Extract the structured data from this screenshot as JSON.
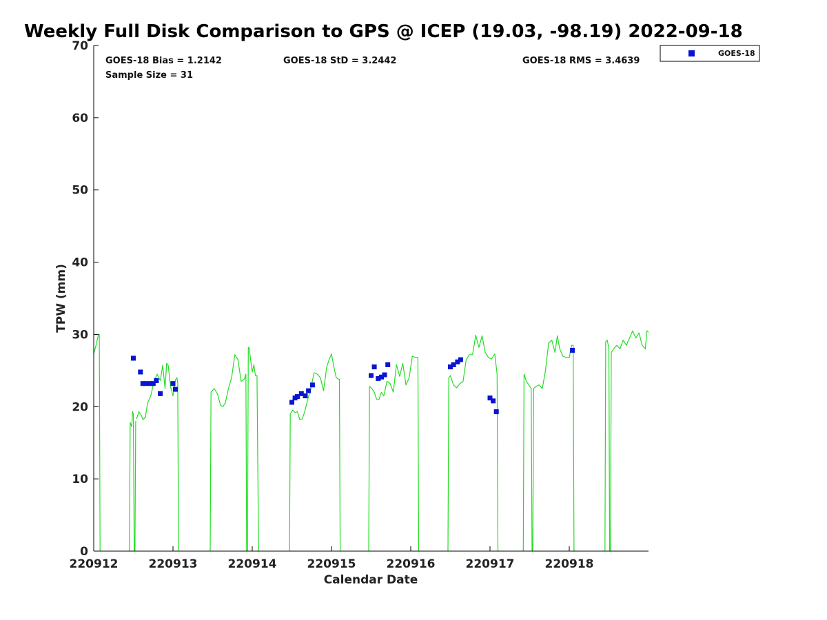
{
  "chart_data": {
    "type": "scatter",
    "title": "Weekly Full Disk Comparison to GPS @ ICEP (19.03, -98.19) 2022-09-18",
    "xlabel": "Calendar Date",
    "ylabel": "TPW (mm)",
    "xlim": [
      0,
      7
    ],
    "ylim": [
      0,
      70
    ],
    "x_ticks": [
      {
        "value": 0,
        "label": "220912"
      },
      {
        "value": 1,
        "label": "220913"
      },
      {
        "value": 2,
        "label": "220914"
      },
      {
        "value": 3,
        "label": "220915"
      },
      {
        "value": 4,
        "label": "220916"
      },
      {
        "value": 5,
        "label": "220917"
      },
      {
        "value": 6,
        "label": "220918"
      }
    ],
    "y_ticks": [
      0,
      10,
      20,
      30,
      40,
      50,
      60,
      70
    ],
    "y_tick_labels": [
      "0",
      "10",
      "20",
      "30",
      "40",
      "50",
      "60",
      "70"
    ],
    "stats": {
      "bias": "GOES-18 Bias = 1.2142",
      "std": "GOES-18 StD = 3.2442",
      "rms": "GOES-18 RMS = 3.4639",
      "sample_size": "Sample Size = 31"
    },
    "legend": {
      "label": "GOES-18",
      "position": "top-right outside"
    },
    "colors": {
      "goes": "#0a14d2",
      "gps": "#22dd22"
    },
    "series": [
      {
        "name": "GOES-18",
        "marker": "square",
        "x": [
          0.5,
          0.59,
          0.62,
          0.66,
          0.71,
          0.75,
          0.79,
          0.84,
          1.0,
          1.03,
          2.5,
          2.54,
          2.57,
          2.62,
          2.67,
          2.71,
          2.76,
          3.5,
          3.54,
          3.59,
          3.63,
          3.67,
          3.71,
          4.5,
          4.54,
          4.59,
          4.63,
          5.0,
          5.04,
          5.08,
          6.04
        ],
        "y": [
          26.7,
          24.8,
          23.2,
          23.2,
          23.2,
          23.2,
          23.6,
          21.8,
          23.2,
          22.4,
          20.6,
          21.2,
          21.4,
          21.8,
          21.5,
          22.2,
          23.0,
          24.3,
          25.5,
          23.9,
          24.1,
          24.4,
          25.8,
          25.5,
          25.8,
          26.2,
          26.5,
          21.2,
          20.8,
          19.3,
          27.8
        ]
      },
      {
        "name": "GPS",
        "marker": "line",
        "segments": [
          {
            "x": [
              0.0,
              0.03,
              0.06,
              0.07,
              0.08
            ],
            "y": [
              27.3,
              28.5,
              30.0,
              30.0,
              0
            ]
          },
          {
            "x": [
              0.45,
              0.46,
              0.48,
              0.49,
              0.5,
              0.51,
              0.52,
              0.53
            ],
            "y": [
              0,
              17.8,
              17.2,
              19.3,
              19.0,
              0,
              0,
              18.0
            ]
          },
          {
            "x": [
              0.54,
              0.57,
              0.6,
              0.62,
              0.65,
              0.68,
              0.72,
              0.76,
              0.8,
              0.84,
              0.87,
              0.9,
              0.92,
              0.94,
              0.97,
              1.0,
              1.03,
              1.05,
              1.06,
              1.07
            ],
            "y": [
              18.3,
              19.3,
              18.8,
              18.2,
              18.5,
              20.5,
              21.5,
              23.5,
              24.5,
              23.6,
              25.7,
              22.5,
              26.0,
              25.7,
              22.7,
              21.5,
              23.7,
              24.0,
              23.2,
              0
            ]
          },
          {
            "x": [
              1.47,
              1.48,
              1.52,
              1.56,
              1.6,
              1.63,
              1.66,
              1.7,
              1.74,
              1.78,
              1.82,
              1.86,
              1.9,
              1.92,
              1.93,
              1.94,
              1.95,
              1.96,
              1.98,
              2.0,
              2.02,
              2.04,
              2.06,
              2.08,
              2.09
            ],
            "y": [
              0,
              22.0,
              22.5,
              21.8,
              20.2,
              20.0,
              20.5,
              22.5,
              24.0,
              27.2,
              26.5,
              23.5,
              23.8,
              24.5,
              0,
              0,
              28.2,
              28.2,
              26.5,
              24.8,
              25.8,
              24.3,
              24.3,
              0,
              0
            ]
          },
          {
            "x": [
              2.47,
              2.48,
              2.51,
              2.54,
              2.57,
              2.6,
              2.63,
              2.66,
              2.7,
              2.74,
              2.78,
              2.82,
              2.86,
              2.9,
              2.94,
              2.97,
              3.0,
              3.03,
              3.06,
              3.09,
              3.1,
              3.11
            ],
            "y": [
              0,
              19.0,
              19.5,
              19.2,
              19.3,
              18.2,
              18.3,
              19.2,
              21.0,
              22.5,
              24.7,
              24.5,
              24.0,
              22.2,
              25.5,
              26.5,
              27.3,
              25.5,
              24.0,
              23.8,
              23.8,
              0
            ]
          },
          {
            "x": [
              3.47,
              3.48,
              3.51,
              3.54,
              3.57,
              3.6,
              3.63,
              3.66,
              3.7,
              3.74,
              3.78,
              3.82,
              3.86,
              3.9,
              3.94,
              3.98,
              4.02,
              4.06,
              4.09,
              4.1,
              4.11
            ],
            "y": [
              0,
              22.8,
              22.5,
              22.0,
              21.0,
              21.0,
              22.0,
              21.5,
              23.5,
              23.2,
              22.0,
              25.8,
              24.2,
              26.0,
              23.0,
              24.0,
              27.0,
              26.8,
              26.8,
              0,
              0
            ]
          },
          {
            "x": [
              4.47,
              4.48,
              4.5,
              4.54,
              4.58,
              4.62,
              4.66,
              4.7,
              4.74,
              4.78,
              4.82,
              4.86,
              4.9,
              4.94,
              4.98,
              5.02,
              5.06,
              5.09,
              5.1,
              5.11
            ],
            "y": [
              0,
              24.0,
              24.3,
              23.0,
              22.6,
              23.2,
              23.5,
              26.5,
              27.2,
              27.2,
              29.9,
              28.2,
              29.8,
              27.5,
              26.8,
              26.6,
              27.3,
              24.5,
              0,
              0
            ]
          },
          {
            "x": [
              5.42,
              5.43,
              5.46,
              5.49,
              5.52,
              5.53,
              5.54,
              5.55,
              5.58,
              5.62,
              5.66,
              5.7,
              5.74,
              5.78,
              5.82,
              5.85,
              5.88,
              5.92,
              5.96,
              6.0,
              6.03,
              6.05,
              6.06,
              6.07
            ],
            "y": [
              0,
              24.5,
              23.5,
              23.0,
              22.5,
              0,
              0,
              22.5,
              22.8,
              23.0,
              22.5,
              25.0,
              28.8,
              29.2,
              27.5,
              29.8,
              28.0,
              27.0,
              26.8,
              26.8,
              28.5,
              28.5,
              0,
              0
            ]
          },
          {
            "x": [
              6.45,
              6.46,
              6.48,
              6.5,
              6.51,
              6.52,
              6.53,
              6.56,
              6.6,
              6.64,
              6.68,
              6.72,
              6.76,
              6.8,
              6.84,
              6.88,
              6.92,
              6.96,
              6.98,
              7.0
            ],
            "y": [
              0,
              29.0,
              29.2,
              28.0,
              0,
              0,
              27.5,
              28.0,
              28.5,
              28.0,
              29.2,
              28.5,
              29.5,
              30.5,
              29.5,
              30.2,
              28.5,
              28.0,
              30.5,
              30.3
            ]
          }
        ]
      }
    ]
  }
}
